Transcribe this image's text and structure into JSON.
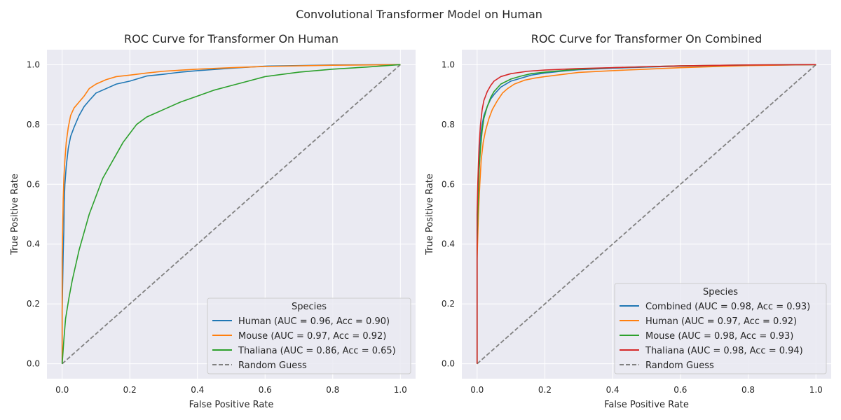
{
  "figure": {
    "suptitle": "Convolutional Transformer Model on Human"
  },
  "chart_data": [
    {
      "type": "line",
      "title": "ROC Curve for Transformer On Human",
      "xlabel": "False Positive Rate",
      "ylabel": "True Positive Rate",
      "xlim": [
        -0.045,
        1.045
      ],
      "ylim": [
        -0.05,
        1.05
      ],
      "xticks": [
        "0.0",
        "0.2",
        "0.4",
        "0.6",
        "0.8",
        "1.0"
      ],
      "yticks": [
        "0.0",
        "0.2",
        "0.4",
        "0.6",
        "0.8",
        "1.0"
      ],
      "grid": true,
      "legend": {
        "title": "Species",
        "placement": "lower-right"
      },
      "series": [
        {
          "name": "Human (AUC = 0.96, Acc = 0.90)",
          "color": "#1f77b4",
          "points": [
            [
              0,
              0
            ],
            [
              0,
              0.18
            ],
            [
              0.003,
              0.37
            ],
            [
              0.005,
              0.45
            ],
            [
              0.006,
              0.54
            ],
            [
              0.008,
              0.6
            ],
            [
              0.012,
              0.66
            ],
            [
              0.018,
              0.72
            ],
            [
              0.025,
              0.76
            ],
            [
              0.035,
              0.79
            ],
            [
              0.05,
              0.83
            ],
            [
              0.065,
              0.86
            ],
            [
              0.08,
              0.88
            ],
            [
              0.1,
              0.905
            ],
            [
              0.13,
              0.92
            ],
            [
              0.16,
              0.935
            ],
            [
              0.2,
              0.945
            ],
            [
              0.25,
              0.962
            ],
            [
              0.3,
              0.968
            ],
            [
              0.35,
              0.975
            ],
            [
              0.4,
              0.98
            ],
            [
              0.5,
              0.988
            ],
            [
              0.6,
              0.995
            ],
            [
              0.8,
              0.999
            ],
            [
              1,
              1
            ]
          ]
        },
        {
          "name": "Mouse (AUC = 0.97, Acc = 0.92)",
          "color": "#ff7f0e",
          "points": [
            [
              0,
              0
            ],
            [
              0,
              0.35
            ],
            [
              0.003,
              0.55
            ],
            [
              0.005,
              0.62
            ],
            [
              0.008,
              0.68
            ],
            [
              0.012,
              0.74
            ],
            [
              0.018,
              0.79
            ],
            [
              0.025,
              0.83
            ],
            [
              0.035,
              0.855
            ],
            [
              0.05,
              0.875
            ],
            [
              0.065,
              0.895
            ],
            [
              0.08,
              0.92
            ],
            [
              0.1,
              0.935
            ],
            [
              0.13,
              0.95
            ],
            [
              0.16,
              0.96
            ],
            [
              0.2,
              0.965
            ],
            [
              0.25,
              0.972
            ],
            [
              0.3,
              0.978
            ],
            [
              0.4,
              0.985
            ],
            [
              0.5,
              0.99
            ],
            [
              0.6,
              0.994
            ],
            [
              0.8,
              0.998
            ],
            [
              1,
              1
            ]
          ]
        },
        {
          "name": "Thaliana (AUC = 0.86, Acc = 0.65)",
          "color": "#2ca02c",
          "points": [
            [
              0,
              0
            ],
            [
              0.005,
              0.08
            ],
            [
              0.01,
              0.15
            ],
            [
              0.02,
              0.22
            ],
            [
              0.03,
              0.28
            ],
            [
              0.04,
              0.33
            ],
            [
              0.05,
              0.38
            ],
            [
              0.06,
              0.42
            ],
            [
              0.07,
              0.46
            ],
            [
              0.08,
              0.5
            ],
            [
              0.1,
              0.56
            ],
            [
              0.12,
              0.62
            ],
            [
              0.14,
              0.66
            ],
            [
              0.16,
              0.7
            ],
            [
              0.18,
              0.74
            ],
            [
              0.2,
              0.77
            ],
            [
              0.22,
              0.8
            ],
            [
              0.25,
              0.825
            ],
            [
              0.28,
              0.84
            ],
            [
              0.3,
              0.85
            ],
            [
              0.35,
              0.875
            ],
            [
              0.4,
              0.895
            ],
            [
              0.45,
              0.915
            ],
            [
              0.5,
              0.93
            ],
            [
              0.55,
              0.945
            ],
            [
              0.6,
              0.96
            ],
            [
              0.7,
              0.975
            ],
            [
              0.8,
              0.985
            ],
            [
              0.9,
              0.992
            ],
            [
              1,
              1
            ]
          ]
        },
        {
          "name": "Random Guess",
          "color": "#808080",
          "dashed": true,
          "points": [
            [
              0,
              0
            ],
            [
              1,
              1
            ]
          ]
        }
      ]
    },
    {
      "type": "line",
      "title": "ROC Curve for Transformer On Combined",
      "xlabel": "False Positive Rate",
      "ylabel": "True Positive Rate",
      "xlim": [
        -0.045,
        1.045
      ],
      "ylim": [
        -0.05,
        1.05
      ],
      "xticks": [
        "0.0",
        "0.2",
        "0.4",
        "0.6",
        "0.8",
        "1.0"
      ],
      "yticks": [
        "0.0",
        "0.2",
        "0.4",
        "0.6",
        "0.8",
        "1.0"
      ],
      "grid": true,
      "legend": {
        "title": "Species",
        "placement": "lower-right"
      },
      "series": [
        {
          "name": "Combined (AUC = 0.98, Acc = 0.93)",
          "color": "#1f77b4",
          "points": [
            [
              0,
              0
            ],
            [
              0,
              0.45
            ],
            [
              0.003,
              0.6
            ],
            [
              0.006,
              0.7
            ],
            [
              0.01,
              0.76
            ],
            [
              0.015,
              0.8
            ],
            [
              0.02,
              0.83
            ],
            [
              0.03,
              0.86
            ],
            [
              0.04,
              0.885
            ],
            [
              0.05,
              0.9
            ],
            [
              0.07,
              0.925
            ],
            [
              0.1,
              0.945
            ],
            [
              0.13,
              0.955
            ],
            [
              0.16,
              0.965
            ],
            [
              0.2,
              0.972
            ],
            [
              0.25,
              0.978
            ],
            [
              0.3,
              0.983
            ],
            [
              0.4,
              0.988
            ],
            [
              0.5,
              0.992
            ],
            [
              0.6,
              0.995
            ],
            [
              0.8,
              0.998
            ],
            [
              1,
              1
            ]
          ]
        },
        {
          "name": "Human (AUC = 0.97, Acc = 0.92)",
          "color": "#ff7f0e",
          "points": [
            [
              0,
              0
            ],
            [
              0,
              0.35
            ],
            [
              0.004,
              0.5
            ],
            [
              0.008,
              0.6
            ],
            [
              0.012,
              0.68
            ],
            [
              0.018,
              0.74
            ],
            [
              0.025,
              0.78
            ],
            [
              0.035,
              0.82
            ],
            [
              0.045,
              0.85
            ],
            [
              0.06,
              0.88
            ],
            [
              0.075,
              0.905
            ],
            [
              0.09,
              0.92
            ],
            [
              0.11,
              0.935
            ],
            [
              0.14,
              0.948
            ],
            [
              0.17,
              0.955
            ],
            [
              0.2,
              0.96
            ],
            [
              0.25,
              0.967
            ],
            [
              0.3,
              0.974
            ],
            [
              0.4,
              0.98
            ],
            [
              0.5,
              0.985
            ],
            [
              0.6,
              0.99
            ],
            [
              0.8,
              0.997
            ],
            [
              1,
              1
            ]
          ]
        },
        {
          "name": "Mouse (AUC = 0.98, Acc = 0.93)",
          "color": "#2ca02c",
          "points": [
            [
              0,
              0
            ],
            [
              0,
              0.4
            ],
            [
              0.003,
              0.55
            ],
            [
              0.006,
              0.65
            ],
            [
              0.01,
              0.72
            ],
            [
              0.015,
              0.78
            ],
            [
              0.02,
              0.82
            ],
            [
              0.03,
              0.86
            ],
            [
              0.04,
              0.89
            ],
            [
              0.05,
              0.91
            ],
            [
              0.07,
              0.935
            ],
            [
              0.1,
              0.952
            ],
            [
              0.13,
              0.962
            ],
            [
              0.16,
              0.97
            ],
            [
              0.2,
              0.975
            ],
            [
              0.25,
              0.98
            ],
            [
              0.3,
              0.985
            ],
            [
              0.4,
              0.99
            ],
            [
              0.5,
              0.993
            ],
            [
              0.6,
              0.996
            ],
            [
              0.8,
              0.999
            ],
            [
              1,
              1
            ]
          ]
        },
        {
          "name": "Thaliana (AUC = 0.98, Acc = 0.94)",
          "color": "#d62728",
          "points": [
            [
              0,
              0
            ],
            [
              0,
              0.5
            ],
            [
              0.002,
              0.6
            ],
            [
              0.004,
              0.67
            ],
            [
              0.006,
              0.73
            ],
            [
              0.01,
              0.8
            ],
            [
              0.015,
              0.85
            ],
            [
              0.02,
              0.88
            ],
            [
              0.03,
              0.91
            ],
            [
              0.04,
              0.93
            ],
            [
              0.05,
              0.945
            ],
            [
              0.07,
              0.96
            ],
            [
              0.1,
              0.97
            ],
            [
              0.15,
              0.978
            ],
            [
              0.2,
              0.982
            ],
            [
              0.3,
              0.987
            ],
            [
              0.4,
              0.99
            ],
            [
              0.5,
              0.993
            ],
            [
              0.6,
              0.996
            ],
            [
              0.8,
              0.999
            ],
            [
              1,
              1
            ]
          ]
        },
        {
          "name": "Random Guess",
          "color": "#808080",
          "dashed": true,
          "points": [
            [
              0,
              0
            ],
            [
              1,
              1
            ]
          ]
        }
      ]
    }
  ]
}
